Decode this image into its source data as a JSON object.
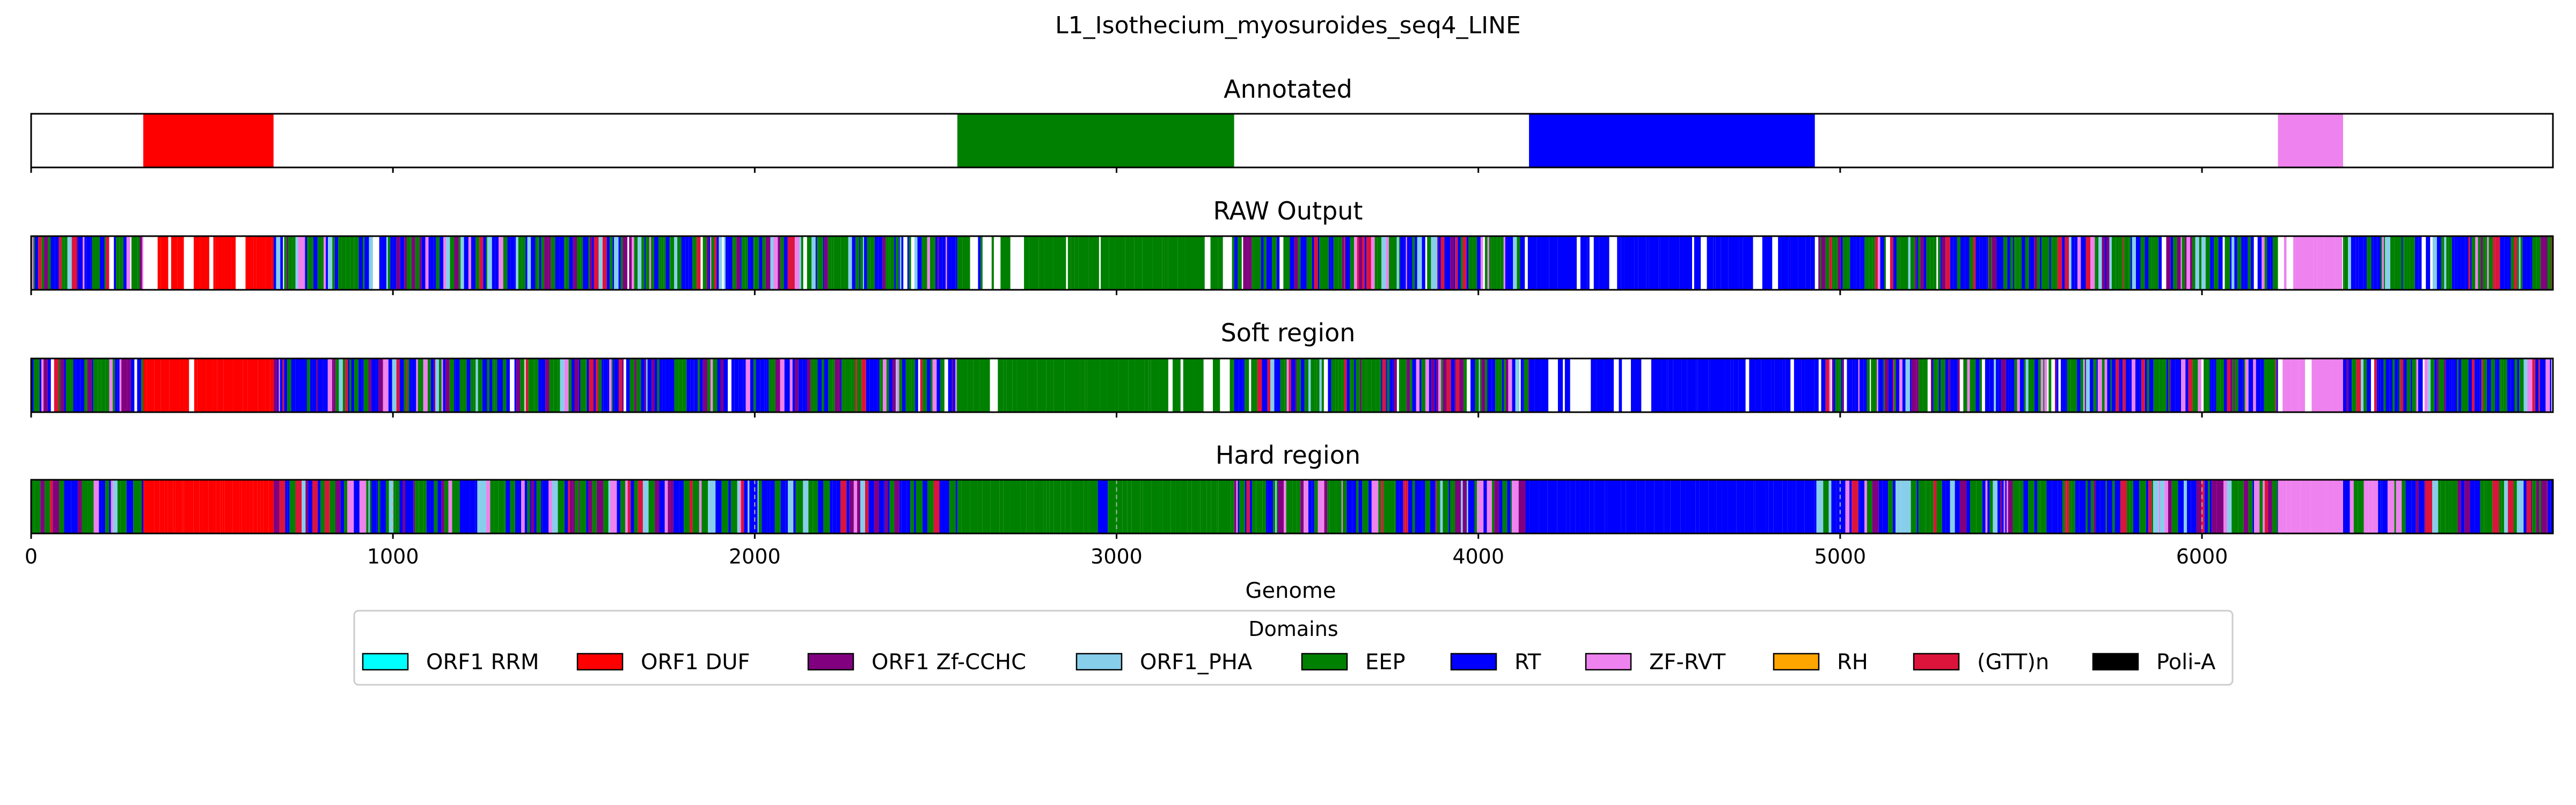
{
  "chart_data": {
    "type": "genome-track",
    "title": "L1_Isothecium_myosuroides_seq4_LINE",
    "xlabel": "Genome",
    "xlim": [
      0,
      6970
    ],
    "xticks": [
      0,
      1000,
      2000,
      3000,
      4000,
      5000,
      6000
    ],
    "grid": "dashed vertical gridlines at ticks (bottom track only)",
    "legend": {
      "title": "Domains",
      "placement": "bottom-center",
      "entries": [
        {
          "label": "ORF1 RRM",
          "color": "#00ffff"
        },
        {
          "label": "ORF1 DUF",
          "color": "#ff0000"
        },
        {
          "label": "ORF1 Zf-CCHC",
          "color": "#800080"
        },
        {
          "label": "ORF1_PHA",
          "color": "#87ceeb"
        },
        {
          "label": "EEP",
          "color": "#008000"
        },
        {
          "label": "RT",
          "color": "#0000ff"
        },
        {
          "label": "ZF-RVT",
          "color": "#ee82ee"
        },
        {
          "label": "RH",
          "color": "#ffa500"
        },
        {
          "label": "(GTT)n",
          "color": "#dc143c"
        },
        {
          "label": "Poli-A",
          "color": "#000000"
        }
      ]
    },
    "tracks": [
      {
        "name": "Annotated",
        "segments": [
          {
            "domain": "ORF1 DUF",
            "start": 310,
            "end": 670
          },
          {
            "domain": "EEP",
            "start": 2560,
            "end": 3325
          },
          {
            "domain": "RT",
            "start": 4140,
            "end": 4930
          },
          {
            "domain": "ZF-RVT",
            "start": 6210,
            "end": 6390
          }
        ]
      },
      {
        "name": "RAW Output",
        "style": "per-position",
        "dominant": [
          {
            "domain": "ORF1 DUF",
            "start": 310,
            "end": 670
          },
          {
            "domain": "EEP",
            "start": 2560,
            "end": 3325
          },
          {
            "domain": "RT",
            "start": 4140,
            "end": 4930
          },
          {
            "domain": "ZF-RVT",
            "start": 6210,
            "end": 6390
          }
        ],
        "background_mix": [
          "EEP",
          "RT",
          "ORF1 Zf-CCHC",
          "ORF1_PHA",
          "(GTT)n",
          "ZF-RVT"
        ],
        "gap_fraction": 0.18
      },
      {
        "name": "Soft region",
        "style": "per-position",
        "dominant": [
          {
            "domain": "ORF1 DUF",
            "start": 310,
            "end": 670
          },
          {
            "domain": "EEP",
            "start": 2560,
            "end": 3325
          },
          {
            "domain": "RT",
            "start": 4140,
            "end": 4930
          },
          {
            "domain": "ZF-RVT",
            "start": 6210,
            "end": 6390
          }
        ],
        "background_mix": [
          "EEP",
          "RT",
          "ORF1 Zf-CCHC",
          "ORF1_PHA",
          "(GTT)n",
          "ZF-RVT"
        ],
        "gap_fraction": 0.15
      },
      {
        "name": "Hard region",
        "style": "per-position",
        "dominant": [
          {
            "domain": "ORF1 DUF",
            "start": 310,
            "end": 670
          },
          {
            "domain": "EEP",
            "start": 2560,
            "end": 3325
          },
          {
            "domain": "RT",
            "start": 4140,
            "end": 4930
          },
          {
            "domain": "ZF-RVT",
            "start": 6210,
            "end": 6390
          }
        ],
        "background_mix": [
          "EEP",
          "RT",
          "ORF1 Zf-CCHC",
          "ORF1_PHA",
          "(GTT)n",
          "ZF-RVT"
        ],
        "gap_fraction": 0.0
      }
    ]
  }
}
